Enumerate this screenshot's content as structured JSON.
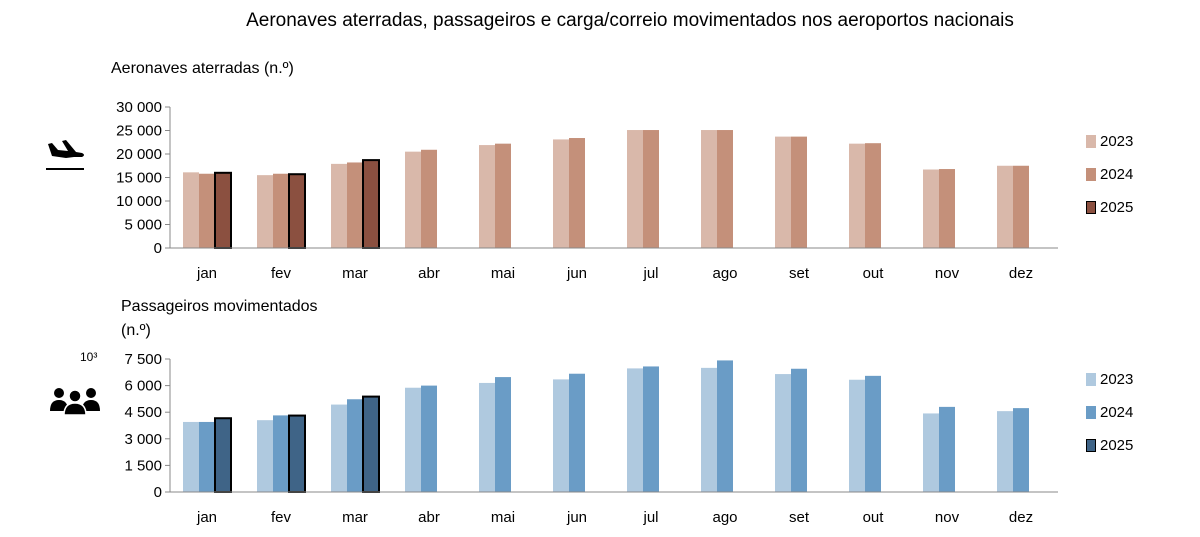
{
  "title": "Aeronaves aterradas, passageiros e carga/correio movimentados nos aeroportos nacionais",
  "colors": {
    "aircraft": [
      "#d9b8aa",
      "#c4907a",
      "#8b5040"
    ],
    "passengers": [
      "#afc9df",
      "#6a9cc6",
      "#3f6487"
    ]
  },
  "icons": {
    "aircraft": "airplane-landing-icon",
    "passengers": "people-group-icon"
  },
  "chart_data": [
    {
      "type": "bar",
      "title": "Aeronaves aterradas (n.º)",
      "categories": [
        "jan",
        "fev",
        "mar",
        "abr",
        "mai",
        "jun",
        "jul",
        "ago",
        "set",
        "out",
        "nov",
        "dez"
      ],
      "series": [
        {
          "name": "2023",
          "values": [
            16100,
            15500,
            17900,
            20500,
            21900,
            23100,
            25100,
            25100,
            23700,
            22200,
            16700,
            17500
          ]
        },
        {
          "name": "2024",
          "values": [
            15800,
            15800,
            18200,
            20900,
            22200,
            23400,
            25100,
            25100,
            23700,
            22300,
            16800,
            17500
          ]
        },
        {
          "name": "2025",
          "values": [
            16000,
            15700,
            18700,
            null,
            null,
            null,
            null,
            null,
            null,
            null,
            null,
            null
          ]
        }
      ],
      "ylim": [
        0,
        30000
      ],
      "yticks": [
        "0",
        "5 000",
        "10 000",
        "15 000",
        "20 000",
        "25 000",
        "30 000"
      ],
      "legend": "right",
      "grid": false
    },
    {
      "type": "bar",
      "title": "Passageiros movimentados",
      "ylabel": "(n.º)",
      "unit_label": "10³",
      "categories": [
        "jan",
        "fev",
        "mar",
        "abr",
        "mai",
        "jun",
        "jul",
        "ago",
        "set",
        "out",
        "nov",
        "dez"
      ],
      "series": [
        {
          "name": "2023",
          "values": [
            3950,
            4050,
            4930,
            5880,
            6150,
            6350,
            6970,
            7000,
            6650,
            6330,
            4430,
            4560
          ]
        },
        {
          "name": "2024",
          "values": [
            3950,
            4320,
            5230,
            6000,
            6480,
            6670,
            7080,
            7420,
            6950,
            6550,
            4800,
            4730
          ]
        },
        {
          "name": "2025",
          "values": [
            4160,
            4310,
            5380,
            null,
            null,
            null,
            null,
            null,
            null,
            null,
            null,
            null
          ]
        }
      ],
      "ylim": [
        0,
        7500
      ],
      "yticks": [
        "0",
        "1 500",
        "3 000",
        "4 500",
        "6 000",
        "7 500"
      ],
      "legend": "right",
      "grid": false
    }
  ]
}
